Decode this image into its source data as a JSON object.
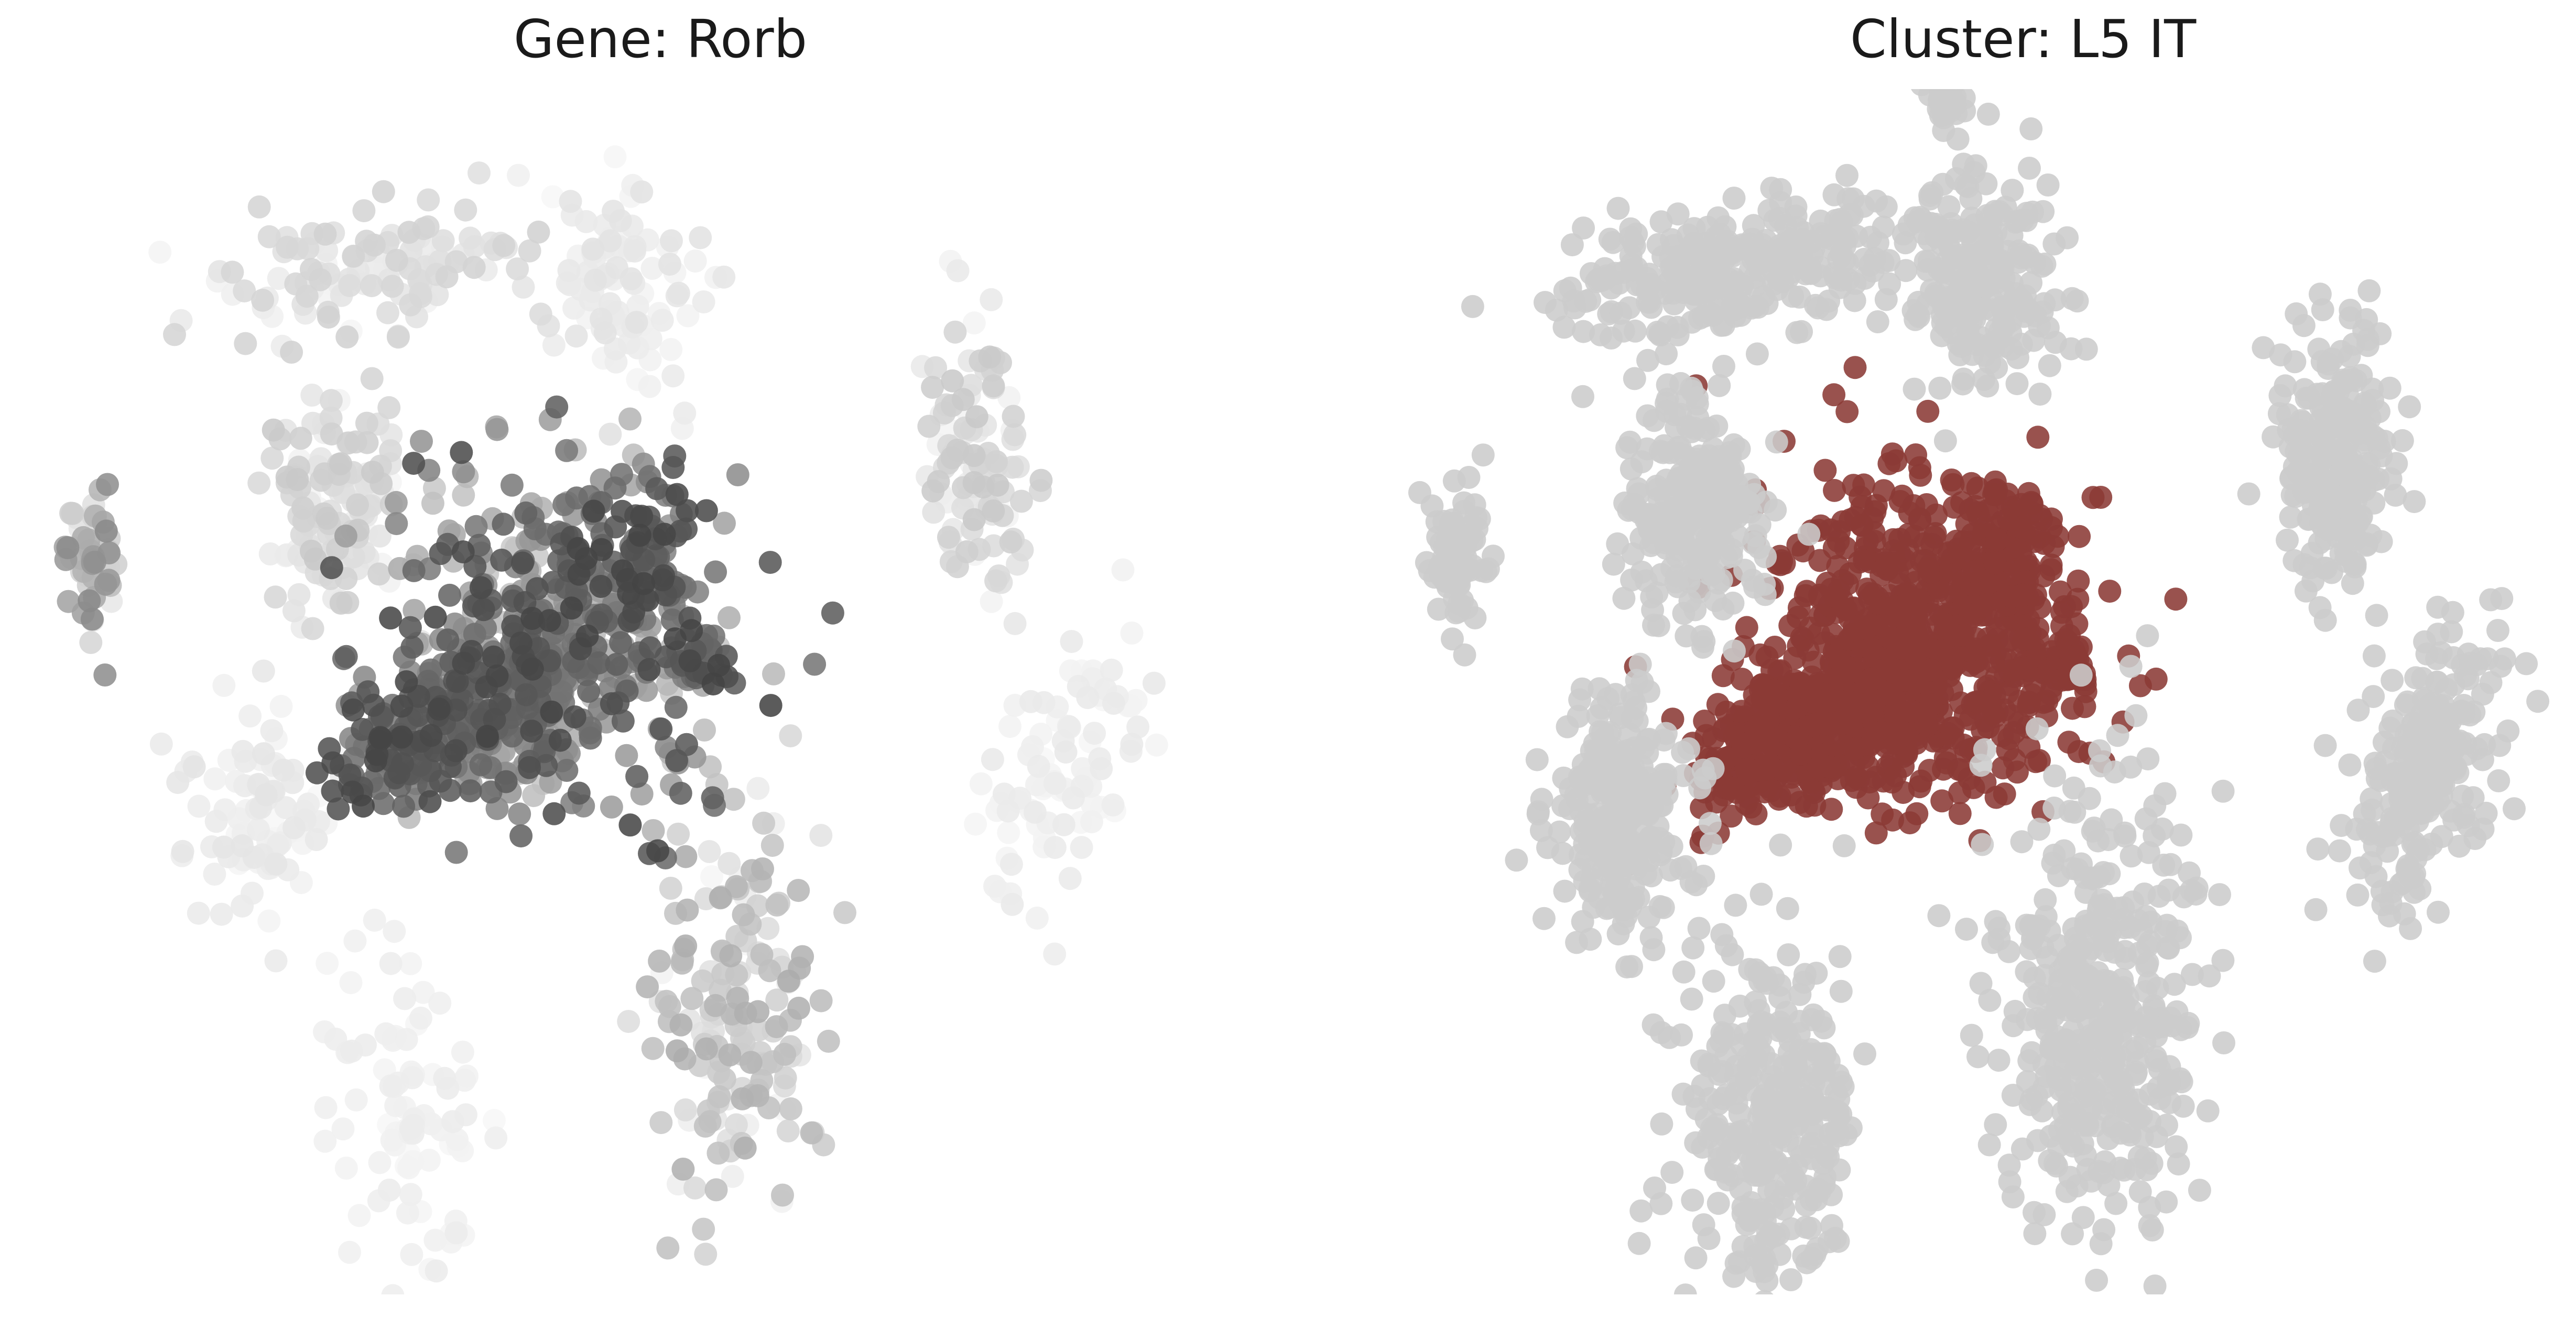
{
  "colors": {
    "background": "#ffffff",
    "cluster_highlight": "#8b3a36",
    "cluster_other": "#cccccc",
    "expression_high": "#3a3a3a",
    "expression_low": "#f7f7f7"
  },
  "chart_data": [
    {
      "type": "scatter",
      "title": "Gene: Rorb",
      "xlabel": "",
      "ylabel": "",
      "axes_visible": false,
      "grid": false,
      "legend": "none",
      "color_encoding": "expression (grayscale, dark = high)",
      "groups": [
        {
          "cx": 0.31,
          "cy": 0.51,
          "sx": 0.04,
          "sy": 0.028,
          "rot": -35,
          "n": 150,
          "expr": [
            0.55,
            0.95
          ]
        },
        {
          "cx": 0.42,
          "cy": 0.42,
          "sx": 0.06,
          "sy": 0.07,
          "rot": -35,
          "n": 420,
          "expr": [
            0.2,
            0.95
          ]
        },
        {
          "cx": 0.38,
          "cy": 0.48,
          "sx": 0.04,
          "sy": 0.03,
          "rot": -35,
          "n": 160,
          "expr": [
            0.1,
            0.85
          ]
        },
        {
          "cx": 0.49,
          "cy": 0.36,
          "sx": 0.02,
          "sy": 0.03,
          "rot": 0,
          "n": 70,
          "expr": [
            0.5,
            0.95
          ]
        },
        {
          "cx": 0.53,
          "cy": 0.45,
          "sx": 0.014,
          "sy": 0.01,
          "rot": 0,
          "n": 30,
          "expr": [
            0.6,
            0.95
          ]
        },
        {
          "cx": 0.24,
          "cy": 0.32,
          "sx": 0.028,
          "sy": 0.045,
          "rot": 0,
          "n": 140,
          "expr": [
            0.0,
            0.25
          ]
        },
        {
          "cx": 0.05,
          "cy": 0.36,
          "sx": 0.01,
          "sy": 0.03,
          "rot": 0,
          "n": 50,
          "expr": [
            0.0,
            0.6
          ]
        },
        {
          "cx": 0.27,
          "cy": 0.12,
          "sx": 0.07,
          "sy": 0.025,
          "rot": -10,
          "n": 120,
          "expr": [
            0.0,
            0.2
          ]
        },
        {
          "cx": 0.47,
          "cy": 0.13,
          "sx": 0.028,
          "sy": 0.048,
          "rot": 0,
          "n": 90,
          "expr": [
            0.0,
            0.12
          ]
        },
        {
          "cx": 0.75,
          "cy": 0.28,
          "sx": 0.022,
          "sy": 0.055,
          "rot": 0,
          "n": 110,
          "expr": [
            0.0,
            0.25
          ]
        },
        {
          "cx": 0.82,
          "cy": 0.53,
          "sx": 0.026,
          "sy": 0.06,
          "rot": 20,
          "n": 90,
          "expr": [
            0.0,
            0.08
          ]
        },
        {
          "cx": 0.18,
          "cy": 0.57,
          "sx": 0.03,
          "sy": 0.05,
          "rot": 0,
          "n": 90,
          "expr": [
            0.0,
            0.1
          ]
        },
        {
          "cx": 0.3,
          "cy": 0.82,
          "sx": 0.035,
          "sy": 0.065,
          "rot": 0,
          "n": 90,
          "expr": [
            0.0,
            0.06
          ]
        },
        {
          "cx": 0.56,
          "cy": 0.74,
          "sx": 0.038,
          "sy": 0.09,
          "rot": 0,
          "n": 170,
          "expr": [
            0.0,
            0.4
          ]
        }
      ]
    },
    {
      "type": "scatter",
      "title": "Cluster: L5 IT",
      "xlabel": "",
      "ylabel": "",
      "axes_visible": false,
      "grid": false,
      "legend": "none",
      "color_encoding": "highlighted cluster in dark red, all other cells in light gray",
      "groups": [
        {
          "cx": 0.31,
          "cy": 0.51,
          "sx": 0.04,
          "sy": 0.028,
          "rot": -35,
          "n": 260,
          "highlight": true
        },
        {
          "cx": 0.42,
          "cy": 0.42,
          "sx": 0.06,
          "sy": 0.07,
          "rot": -35,
          "n": 600,
          "highlight": true
        },
        {
          "cx": 0.38,
          "cy": 0.48,
          "sx": 0.04,
          "sy": 0.03,
          "rot": -35,
          "n": 200,
          "highlight": true
        },
        {
          "cx": 0.49,
          "cy": 0.36,
          "sx": 0.02,
          "sy": 0.03,
          "rot": 0,
          "n": 100,
          "highlight": true
        },
        {
          "cx": 0.53,
          "cy": 0.45,
          "sx": 0.014,
          "sy": 0.01,
          "rot": 0,
          "n": 40,
          "highlight": true
        },
        {
          "cx": 0.24,
          "cy": 0.32,
          "sx": 0.028,
          "sy": 0.045,
          "rot": 0,
          "n": 260,
          "highlight": false
        },
        {
          "cx": 0.05,
          "cy": 0.36,
          "sx": 0.01,
          "sy": 0.03,
          "rot": 0,
          "n": 80,
          "highlight": false
        },
        {
          "cx": 0.27,
          "cy": 0.12,
          "sx": 0.07,
          "sy": 0.025,
          "rot": -10,
          "n": 300,
          "highlight": false
        },
        {
          "cx": 0.47,
          "cy": 0.13,
          "sx": 0.028,
          "sy": 0.048,
          "rot": 0,
          "n": 220,
          "highlight": false
        },
        {
          "cx": 0.44,
          "cy": -0.02,
          "sx": 0.012,
          "sy": 0.008,
          "rot": 0,
          "n": 25,
          "highlight": false
        },
        {
          "cx": 0.75,
          "cy": 0.28,
          "sx": 0.022,
          "sy": 0.055,
          "rot": 0,
          "n": 240,
          "highlight": false
        },
        {
          "cx": 0.82,
          "cy": 0.53,
          "sx": 0.026,
          "sy": 0.06,
          "rot": 20,
          "n": 240,
          "highlight": false
        },
        {
          "cx": 0.18,
          "cy": 0.57,
          "sx": 0.03,
          "sy": 0.05,
          "rot": 0,
          "n": 260,
          "highlight": false
        },
        {
          "cx": 0.3,
          "cy": 0.82,
          "sx": 0.035,
          "sy": 0.065,
          "rot": 0,
          "n": 320,
          "highlight": false
        },
        {
          "cx": 0.56,
          "cy": 0.74,
          "sx": 0.038,
          "sy": 0.09,
          "rot": 0,
          "n": 420,
          "highlight": false
        }
      ]
    }
  ]
}
